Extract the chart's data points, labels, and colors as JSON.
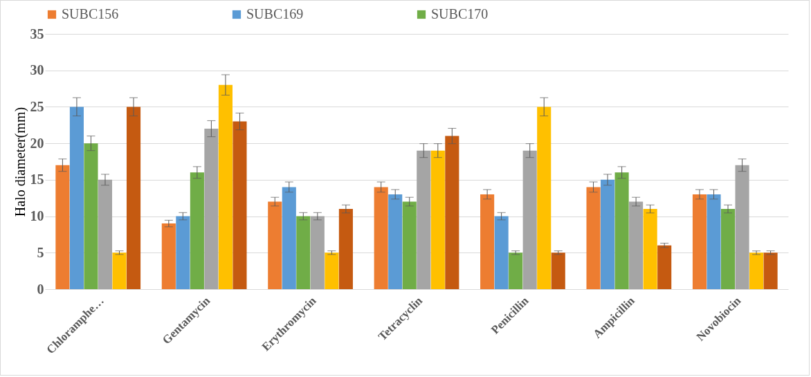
{
  "chart_data": {
    "type": "bar",
    "ylabel": "Halo diameter(mm)",
    "categories": [
      "Chloramphe…",
      "Gentamycin",
      "Erythromycin",
      "Tetracyclin",
      "Penicillin",
      "Ampicillin",
      "Novobiocin"
    ],
    "series": [
      {
        "name": "SUBC156",
        "color": "#ed7d31",
        "values": [
          17,
          9,
          12,
          14,
          13,
          14,
          13
        ],
        "errors": [
          0.85,
          0.45,
          0.6,
          0.7,
          0.65,
          0.7,
          0.65
        ]
      },
      {
        "name": "SUBC169",
        "color": "#5b9bd5",
        "values": [
          25,
          10,
          14,
          13,
          10,
          15,
          13
        ],
        "errors": [
          1.25,
          0.5,
          0.7,
          0.65,
          0.5,
          0.75,
          0.65
        ]
      },
      {
        "name": "SUBC170",
        "color": "#70ad47",
        "values": [
          20,
          16,
          10,
          12,
          5,
          16,
          11
        ],
        "errors": [
          1,
          0.8,
          0.5,
          0.6,
          0.25,
          0.8,
          0.55
        ]
      },
      {
        "color": "#a5a5a5",
        "values": [
          15,
          22,
          10,
          19,
          19,
          12,
          17
        ],
        "errors": [
          0.75,
          1.1,
          0.5,
          0.95,
          0.95,
          0.6,
          0.85
        ]
      },
      {
        "color": "#ffc000",
        "values": [
          5,
          28,
          5,
          19,
          25,
          11,
          5
        ],
        "errors": [
          0.25,
          1.4,
          0.25,
          0.95,
          1.25,
          0.55,
          0.25
        ]
      },
      {
        "color": "#c55a11",
        "values": [
          25,
          23,
          11,
          21,
          5,
          6,
          5
        ],
        "errors": [
          1.25,
          1.15,
          0.55,
          1.05,
          0.25,
          0.3,
          0.25
        ]
      }
    ],
    "ylim": [
      0,
      35
    ],
    "yticks": [
      0,
      5,
      10,
      15,
      20,
      25,
      30,
      35
    ],
    "grid": "y",
    "legend": "top"
  }
}
